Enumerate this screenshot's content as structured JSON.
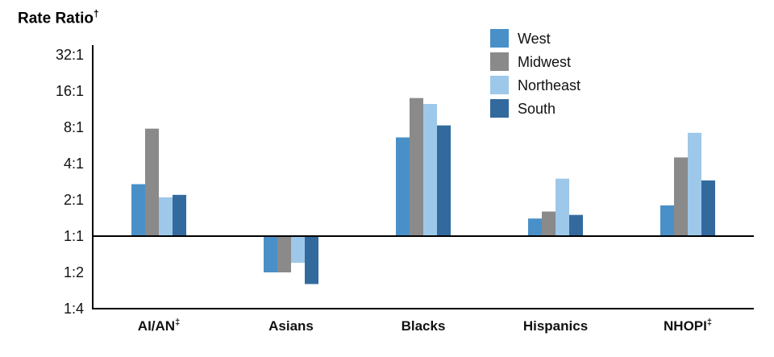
{
  "title": {
    "text": "Rate Ratio",
    "sup": "†"
  },
  "chart_data": {
    "type": "bar",
    "scale": "log2",
    "title": "Rate Ratio†",
    "ylabel": "Rate Ratio",
    "ylim": [
      0.25,
      32
    ],
    "grid": false,
    "legend_position": "top-center",
    "y_tick_labels": [
      "32:1",
      "16:1",
      "8:1",
      "4:1",
      "2:1",
      "1:1",
      "1:2",
      "1:4"
    ],
    "y_tick_values": [
      32,
      16,
      8,
      4,
      2,
      1,
      0.5,
      0.25
    ],
    "baseline_value": 1,
    "baseline_label": "1:1",
    "categories": [
      "AI/AN",
      "Asians",
      "Blacks",
      "Hispanics",
      "NHOPI"
    ],
    "category_sups": [
      "‡",
      "",
      "",
      "",
      "‡"
    ],
    "series": [
      {
        "name": "West",
        "color": "#4a90c8",
        "values": [
          2.7,
          0.5,
          6.6,
          1.4,
          1.8
        ]
      },
      {
        "name": "Midwest",
        "color": "#8a8a8a",
        "values": [
          7.8,
          0.5,
          14.0,
          1.6,
          4.5
        ]
      },
      {
        "name": "Northeast",
        "color": "#9dc8e9",
        "values": [
          2.1,
          0.6,
          12.5,
          3.0,
          7.2
        ]
      },
      {
        "name": "South",
        "color": "#336a9e",
        "values": [
          2.2,
          0.4,
          8.3,
          1.5,
          2.9
        ]
      }
    ]
  }
}
